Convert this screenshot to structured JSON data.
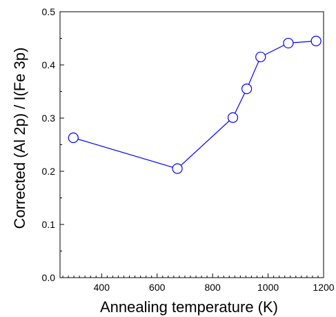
{
  "chart_data": {
    "type": "line",
    "title": "",
    "xlabel": "Annealing temperature (K)",
    "ylabel": "Corrected (Al 2p) / I(Fe 3p)",
    "xlim": [
      250,
      1200
    ],
    "ylim": [
      0.0,
      0.5
    ],
    "x_ticks": [
      400,
      600,
      800,
      1000,
      1200
    ],
    "x_tick_labels": [
      "400",
      "600",
      "800",
      "1000",
      "1200"
    ],
    "y_ticks": [
      0.0,
      0.1,
      0.2,
      0.3,
      0.4,
      0.5
    ],
    "y_tick_labels": [
      "0.0",
      "0.1",
      "0.2",
      "0.3",
      "0.4",
      "0.5"
    ],
    "grid": false,
    "series": [
      {
        "color": "#0000ff",
        "marker": "open-circle",
        "x": [
          298,
          673,
          873,
          923,
          973,
          1073,
          1173
        ],
        "y": [
          0.263,
          0.205,
          0.301,
          0.355,
          0.415,
          0.441,
          0.445
        ]
      }
    ]
  }
}
